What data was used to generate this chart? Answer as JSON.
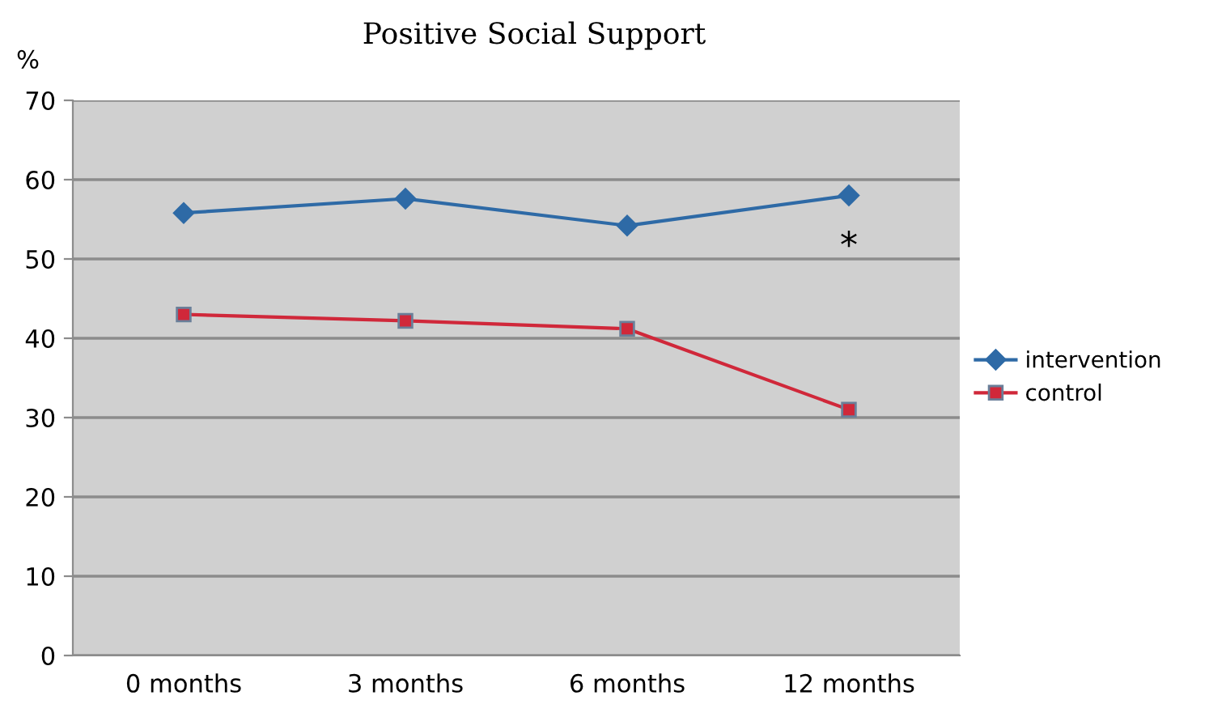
{
  "chart_data": {
    "type": "line",
    "title": "Positive Social Support",
    "ylabel": "%",
    "categories": [
      "0 months",
      "3 months",
      "6 months",
      "12 months"
    ],
    "series": [
      {
        "name": "intervention",
        "color": "#2e6aa6",
        "marker": "diamond",
        "values": [
          55.8,
          57.6,
          54.2,
          58
        ]
      },
      {
        "name": "control",
        "color": "#d0283a",
        "marker": "square",
        "values": [
          43,
          42.2,
          41.2,
          31
        ]
      }
    ],
    "ylim": [
      0,
      70
    ],
    "yticks": [
      0,
      10,
      20,
      30,
      40,
      50,
      60,
      70
    ],
    "grid": "y",
    "legend": "right",
    "annotations": [
      "*"
    ]
  }
}
